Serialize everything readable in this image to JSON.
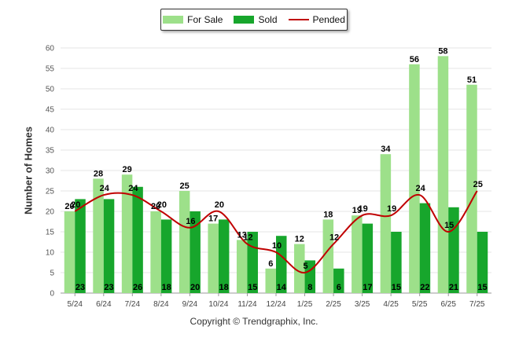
{
  "colors": {
    "for_sale": "#9de08a",
    "sold": "#17a62c",
    "pended": "#c00000",
    "grid": "#e6e6e6",
    "axis": "#999999"
  },
  "legend": {
    "for_sale_label": "For Sale",
    "sold_label": "Sold",
    "pended_label": "Pended"
  },
  "footer": {
    "copyright": "Copyright © Trendgraphix, Inc."
  },
  "chart_data": {
    "type": "bar",
    "title": "",
    "xlabel": "",
    "ylabel": "Number of Homes",
    "ylim": [
      0,
      60
    ],
    "yticks": [
      0,
      5,
      10,
      15,
      20,
      25,
      30,
      35,
      40,
      45,
      50,
      55,
      60
    ],
    "grid": true,
    "legend_position": "top-center",
    "categories": [
      "5/24",
      "6/24",
      "7/24",
      "8/24",
      "9/24",
      "10/24",
      "11/24",
      "12/24",
      "1/25",
      "2/25",
      "3/25",
      "4/25",
      "5/25",
      "6/25",
      "7/25"
    ],
    "series": [
      {
        "name": "For Sale",
        "kind": "bar",
        "values": [
          20,
          28,
          29,
          20,
          25,
          17,
          13,
          6,
          12,
          18,
          19,
          34,
          56,
          58,
          51
        ]
      },
      {
        "name": "Sold",
        "kind": "bar",
        "values": [
          23,
          23,
          26,
          18,
          20,
          18,
          15,
          14,
          8,
          6,
          17,
          15,
          22,
          21,
          15
        ]
      },
      {
        "name": "Pended",
        "kind": "line",
        "values": [
          20,
          24,
          24,
          20,
          16,
          20,
          12,
          10,
          5,
          12,
          19,
          19,
          24,
          15,
          25
        ]
      }
    ]
  }
}
